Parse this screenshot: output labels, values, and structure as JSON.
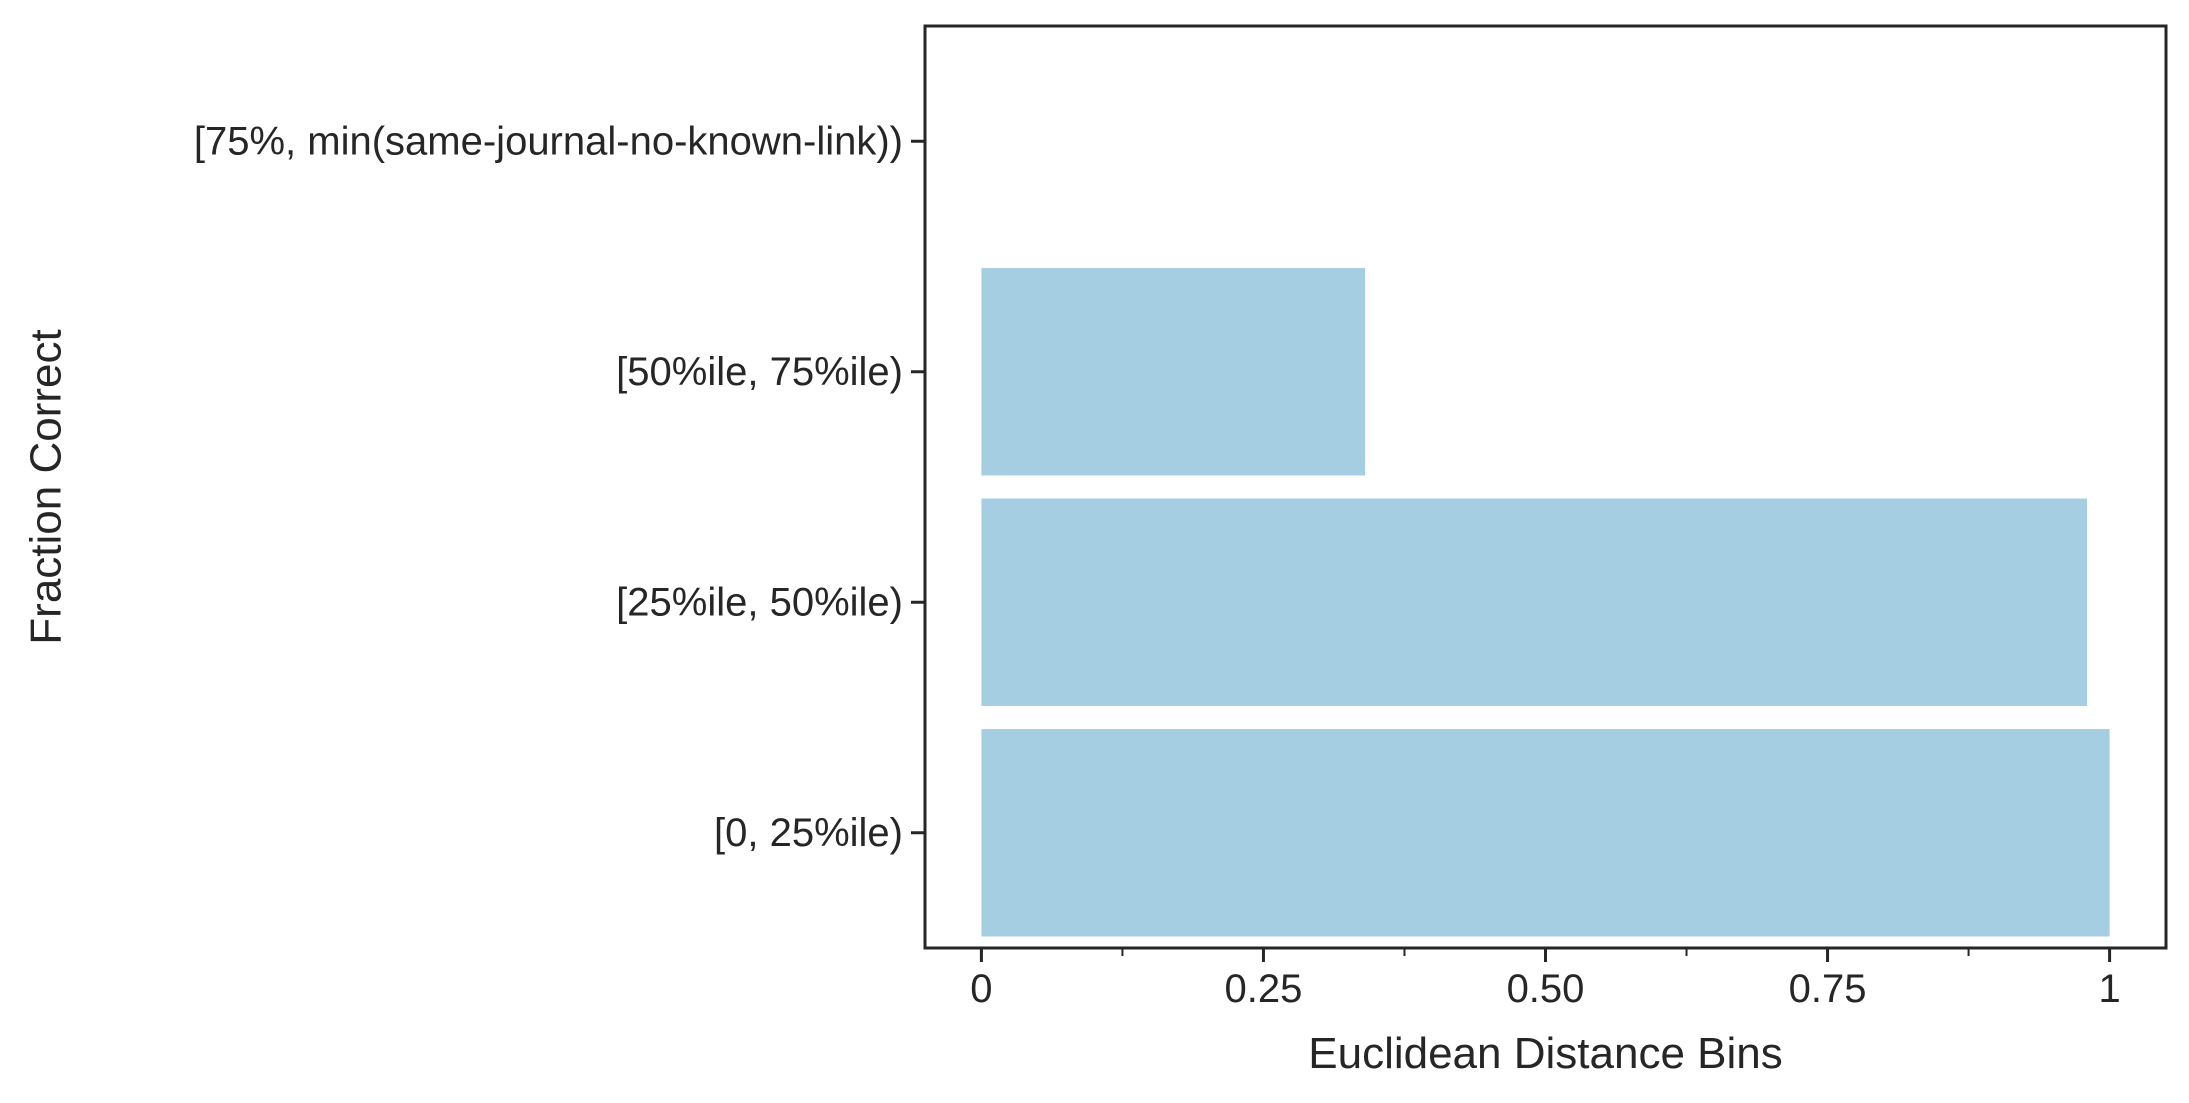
{
  "chart_data": {
    "type": "bar",
    "orientation": "horizontal",
    "xlabel": "Euclidean Distance Bins",
    "ylabel": "Fraction Correct",
    "categories": [
      "[0, 25%ile)",
      "[25%ile, 50%ile)",
      "[50%ile, 75%ile)",
      "[75%, min(same-journal-no-known-link))"
    ],
    "values": [
      1.0,
      0.98,
      0.34,
      0.0
    ],
    "xlim": [
      -0.05,
      1.05
    ],
    "xticks": [
      0,
      0.25,
      0.5,
      0.75,
      1
    ],
    "xtick_labels": [
      "0",
      "0.25",
      "0.50",
      "0.75",
      "1"
    ],
    "xticks_minor": [
      0.125,
      0.375,
      0.625,
      0.875
    ],
    "bar_color": "#a6cee3",
    "axis_color": "#262626",
    "grid": false,
    "legend": "none"
  }
}
